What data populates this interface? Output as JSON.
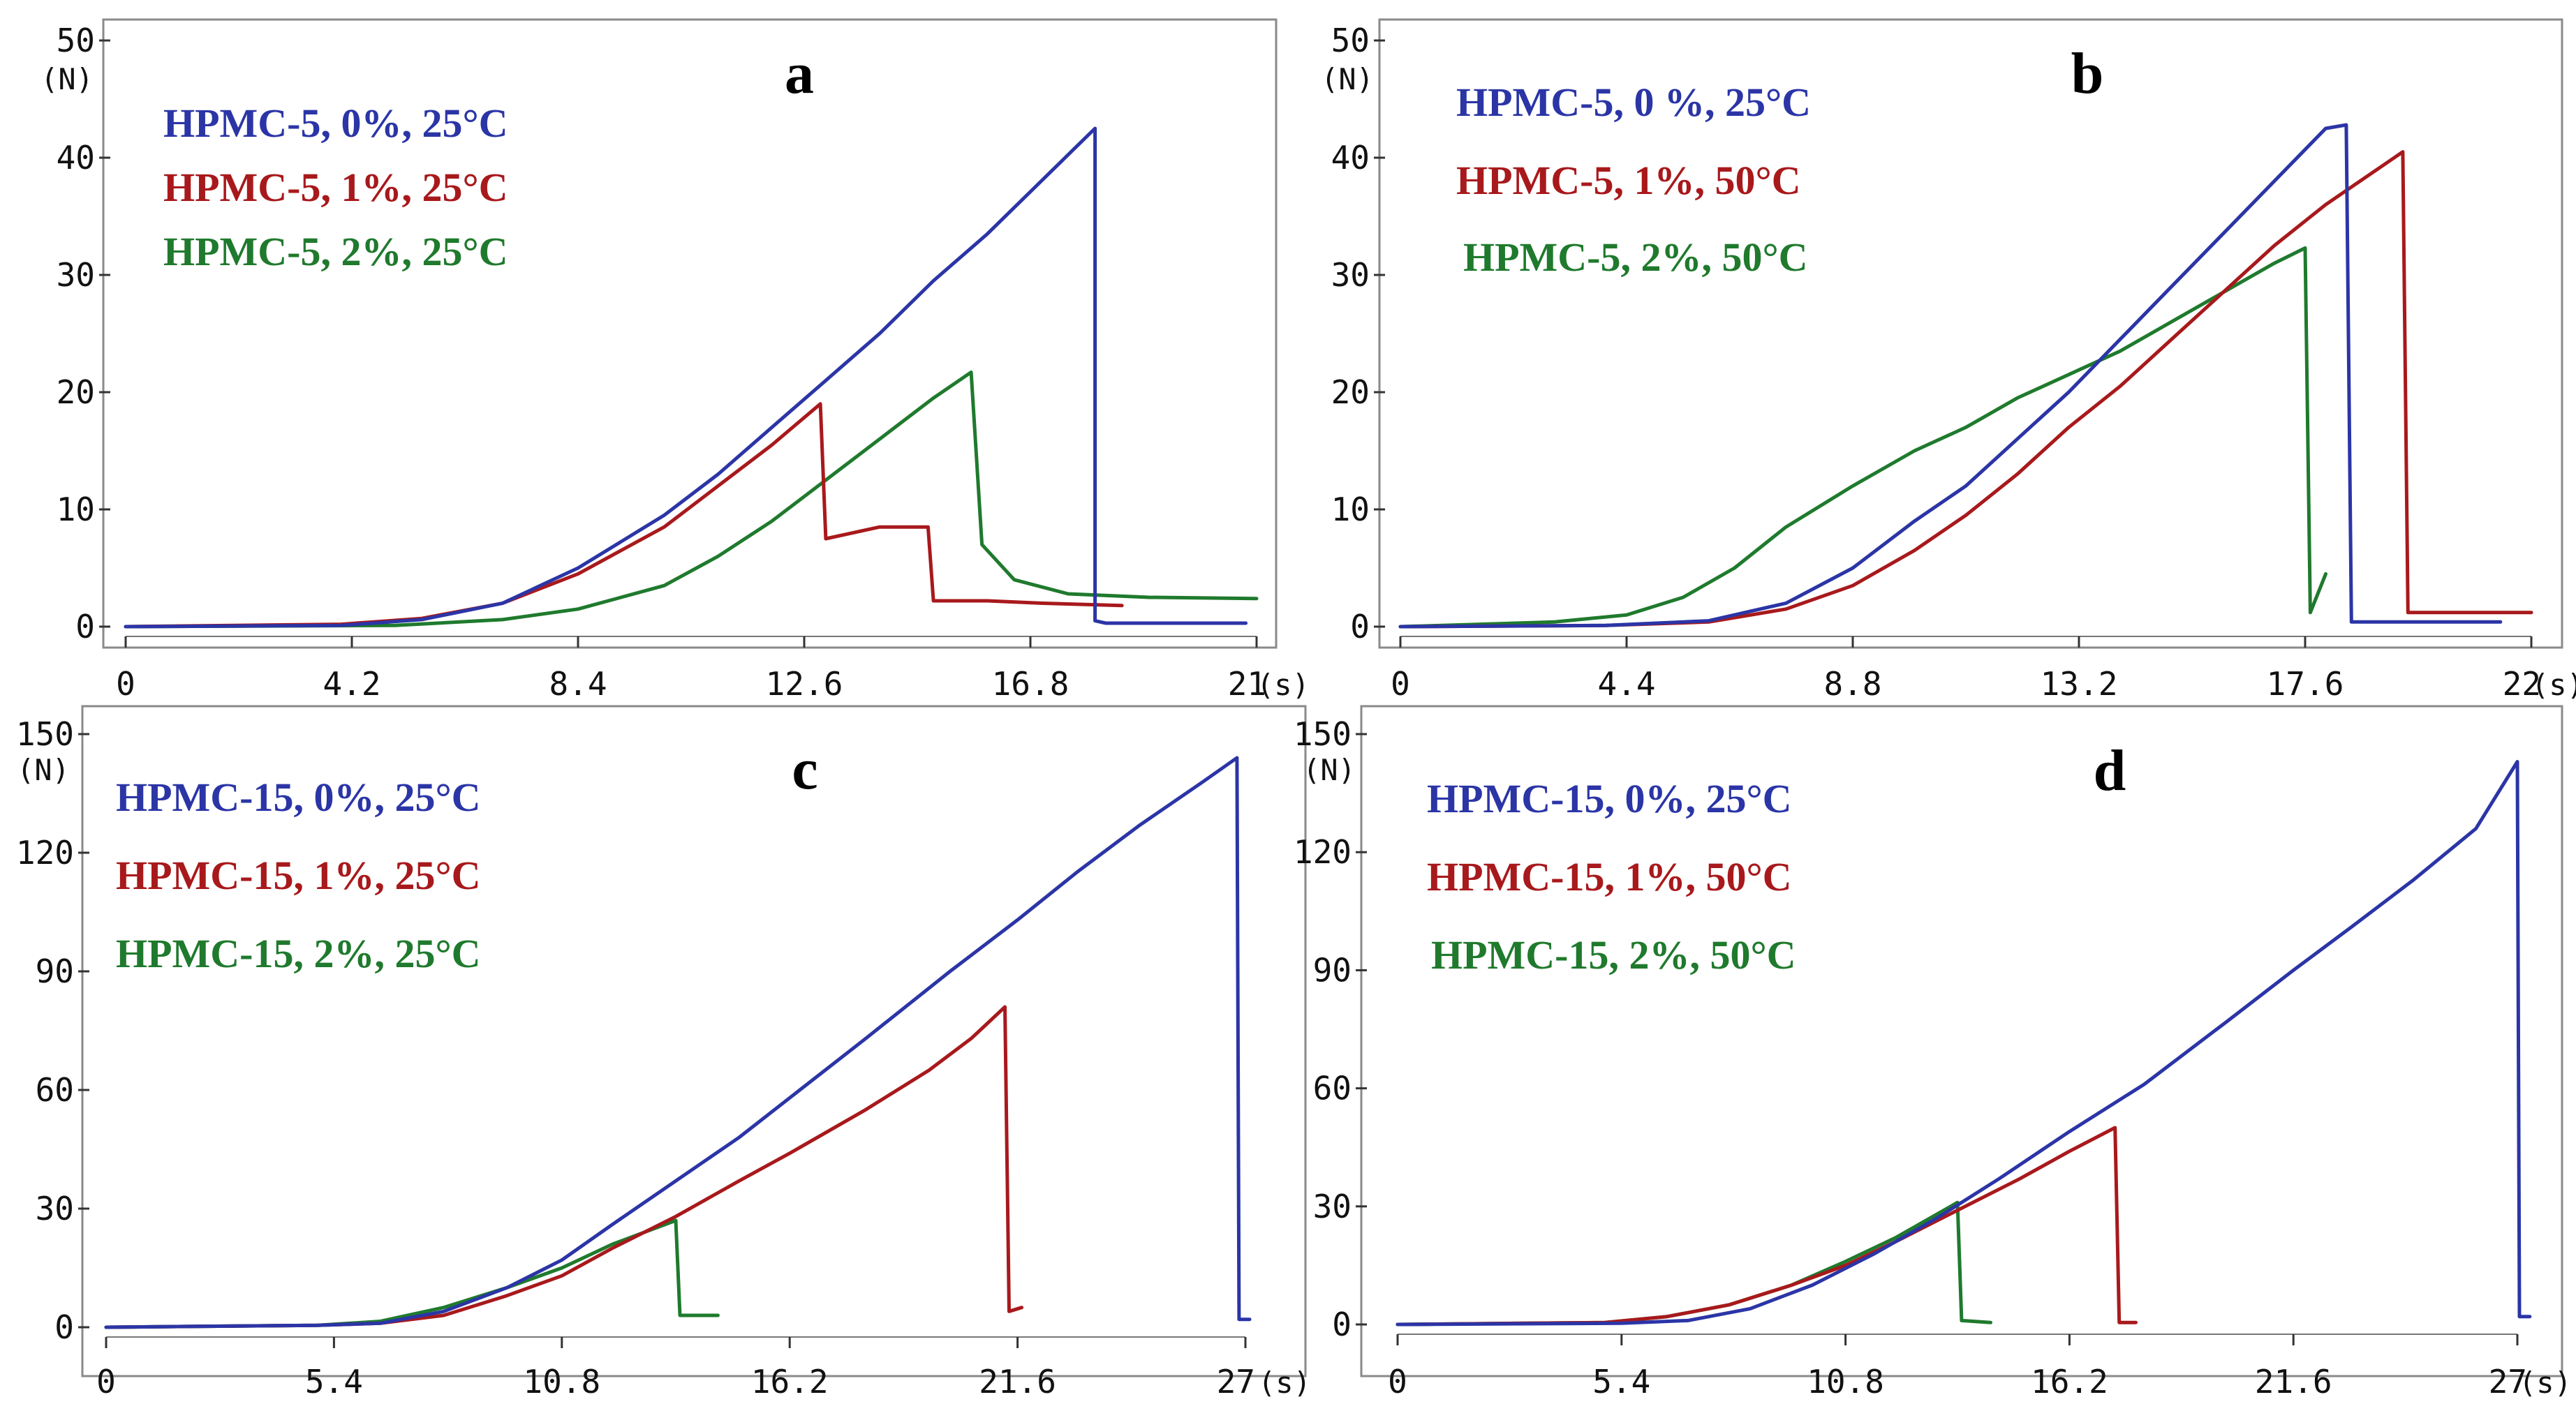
{
  "colors": {
    "blue": "#2b35a6",
    "red": "#a8191c",
    "green": "#1f7a2d",
    "frame": "#8a8a8a"
  },
  "chart_data": [
    {
      "type": "line",
      "panel": "a",
      "xlabel": "(s)",
      "ylabel": "(N)",
      "xlim": [
        0,
        21
      ],
      "ylim": [
        0,
        50
      ],
      "xticks": [
        "0",
        "4.2",
        "8.4",
        "12.6",
        "16.8",
        "21"
      ],
      "xtick_values": [
        0,
        4.2,
        8.4,
        12.6,
        16.8,
        21
      ],
      "yticks": [
        "0",
        "10",
        "20",
        "30",
        "40",
        "50"
      ],
      "ytick_values": [
        0,
        10,
        20,
        30,
        40,
        50
      ],
      "legend": [
        "HPMC-5, 0%, 25°C",
        "HPMC-5, 1%, 25°C",
        "HPMC-5, 2%, 25°C"
      ],
      "series": [
        {
          "name": "HPMC-5, 0%, 25°C",
          "color": "blue",
          "x": [
            0,
            4,
            5.5,
            7,
            8.4,
            10,
            11,
            12,
            13,
            14,
            15,
            16,
            17,
            18,
            18.0,
            18.2,
            20.8
          ],
          "y": [
            0,
            0.1,
            0.6,
            2,
            5,
            9.5,
            13,
            17,
            21,
            25,
            29.5,
            33.5,
            38,
            42.5,
            0.5,
            0.3,
            0.3
          ]
        },
        {
          "name": "HPMC-5, 1%, 25°C",
          "color": "red",
          "x": [
            0,
            4,
            5.5,
            7,
            8.4,
            10,
            11,
            12,
            12.9,
            13.0,
            14,
            14.9,
            15.0,
            16,
            17,
            18.5
          ],
          "y": [
            0,
            0.2,
            0.7,
            2,
            4.5,
            8.5,
            12,
            15.5,
            19,
            7.5,
            8.5,
            8.5,
            2.2,
            2.2,
            2.0,
            1.8
          ]
        },
        {
          "name": "HPMC-5, 2%, 25°C",
          "color": "green",
          "x": [
            0,
            5,
            7,
            8.4,
            10,
            11,
            12,
            13,
            14,
            15,
            15.7,
            15.9,
            16.5,
            17.5,
            19,
            21
          ],
          "y": [
            0,
            0.1,
            0.6,
            1.5,
            3.5,
            6,
            9,
            12.5,
            16,
            19.5,
            21.7,
            7,
            4,
            2.8,
            2.5,
            2.4
          ]
        }
      ]
    },
    {
      "type": "line",
      "panel": "b",
      "xlabel": "(s)",
      "ylabel": "(N)",
      "xlim": [
        0,
        22
      ],
      "ylim": [
        0,
        50
      ],
      "xticks": [
        "0",
        "4.4",
        "8.8",
        "13.2",
        "17.6",
        "22"
      ],
      "xtick_values": [
        0,
        4.4,
        8.8,
        13.2,
        17.6,
        22
      ],
      "yticks": [
        "0",
        "10",
        "20",
        "30",
        "40",
        "50"
      ],
      "ytick_values": [
        0,
        10,
        20,
        30,
        40,
        50
      ],
      "legend": [
        "HPMC-5, 0 %, 25°C",
        "HPMC-5, 1%, 50°C",
        "HPMC-5, 2%, 50°C"
      ],
      "series": [
        {
          "name": "HPMC-5, 0 %, 25°C",
          "color": "blue",
          "x": [
            0,
            4,
            6,
            7.5,
            8.8,
            10,
            11,
            12,
            13,
            14,
            15,
            16,
            17,
            18,
            18.4,
            18.5,
            21.4
          ],
          "y": [
            0,
            0.1,
            0.5,
            2,
            5,
            9,
            12,
            16,
            20,
            24.5,
            29,
            33.5,
            38,
            42.5,
            42.8,
            0.4,
            0.4
          ]
        },
        {
          "name": "HPMC-5, 1%, 50°C",
          "color": "red",
          "x": [
            0,
            4,
            6,
            7.5,
            8.8,
            10,
            11,
            12,
            13,
            14,
            15,
            16,
            17,
            18,
            19,
            19.5,
            19.6,
            22
          ],
          "y": [
            0,
            0.1,
            0.4,
            1.5,
            3.5,
            6.5,
            9.5,
            13,
            17,
            20.5,
            24.5,
            28.5,
            32.5,
            36,
            39,
            40.5,
            1.2,
            1.2
          ]
        },
        {
          "name": "HPMC-5, 2%, 50°C",
          "color": "green",
          "x": [
            0,
            3,
            4.4,
            5.5,
            6.5,
            7.5,
            8.8,
            10,
            11,
            12,
            13,
            14,
            15,
            16,
            17,
            17.6,
            17.7,
            18.0
          ],
          "y": [
            0,
            0.4,
            1,
            2.5,
            5,
            8.5,
            12,
            15,
            17,
            19.5,
            21.5,
            23.5,
            26,
            28.5,
            31,
            32.3,
            1.2,
            4.5
          ]
        }
      ]
    },
    {
      "type": "line",
      "panel": "c",
      "xlabel": "(s)",
      "ylabel": "(N)",
      "xlim": [
        0,
        27
      ],
      "ylim": [
        0,
        150
      ],
      "xticks": [
        "0",
        "5.4",
        "10.8",
        "16.2",
        "21.6",
        "27"
      ],
      "xtick_values": [
        0,
        5.4,
        10.8,
        16.2,
        21.6,
        27
      ],
      "yticks": [
        "0",
        "30",
        "60",
        "90",
        "120",
        "150"
      ],
      "ytick_values": [
        0,
        30,
        60,
        90,
        120,
        150
      ],
      "legend": [
        "HPMC-15, 0%, 25°C",
        "HPMC-15, 1%, 25°C",
        "HPMC-15, 2%, 25°C"
      ],
      "series": [
        {
          "name": "HPMC-15, 0%, 25°C",
          "color": "blue",
          "x": [
            0,
            5,
            6.5,
            8,
            9.5,
            10.8,
            12,
            13.5,
            15,
            16.2,
            18,
            20,
            21.6,
            23,
            24.5,
            26,
            26.8,
            26.85,
            27.1
          ],
          "y": [
            0,
            0.5,
            1,
            4,
            10,
            17,
            26,
            37,
            48,
            58,
            73,
            90,
            103,
            115,
            127,
            138,
            144,
            2,
            2
          ]
        },
        {
          "name": "HPMC-15, 1%, 25°C",
          "color": "red",
          "x": [
            0,
            5,
            6.5,
            8,
            9.5,
            10.8,
            12,
            13.5,
            15,
            16.2,
            18,
            19.5,
            20.5,
            21.3,
            21.4,
            21.7
          ],
          "y": [
            0,
            0.5,
            1,
            3,
            8,
            13,
            20,
            28,
            37,
            44,
            55,
            65,
            73,
            81,
            4,
            5
          ]
        },
        {
          "name": "HPMC-15, 2%, 25°C",
          "color": "green",
          "x": [
            0,
            5,
            6.5,
            8,
            9.5,
            10.8,
            12,
            13.5,
            13.6,
            13.8,
            14.5
          ],
          "y": [
            0,
            0.5,
            1.5,
            5,
            10,
            15,
            21,
            27,
            3,
            3,
            3
          ]
        }
      ]
    },
    {
      "type": "line",
      "panel": "d",
      "xlabel": "(s)",
      "ylabel": "(N)",
      "xlim": [
        0,
        27
      ],
      "ylim": [
        0,
        150
      ],
      "xticks": [
        "0",
        "5.4",
        "10.8",
        "16.2",
        "21.6",
        "27"
      ],
      "xtick_values": [
        0,
        5.4,
        10.8,
        16.2,
        21.6,
        27
      ],
      "yticks": [
        "0",
        "30",
        "60",
        "90",
        "120",
        "150"
      ],
      "ytick_values": [
        0,
        30,
        60,
        90,
        120,
        150
      ],
      "legend": [
        "HPMC-15, 0%, 25°C",
        "HPMC-15, 1%, 50°C",
        "HPMC-15, 2%, 50°C"
      ],
      "series": [
        {
          "name": "HPMC-15, 0%, 25°C",
          "color": "blue",
          "x": [
            0,
            5.4,
            7,
            8.5,
            10,
            11.5,
            13,
            14.5,
            16.2,
            18,
            20,
            21.6,
            23,
            24.5,
            26,
            27,
            27.05,
            27.3
          ],
          "y": [
            0,
            0.3,
            1,
            4,
            10,
            18,
            27,
            37,
            49,
            61,
            77,
            90,
            101,
            113,
            126,
            143,
            2,
            2
          ]
        },
        {
          "name": "HPMC-15, 1%, 50°C",
          "color": "red",
          "x": [
            0,
            5,
            6.5,
            8,
            9.5,
            10.8,
            12,
            13.5,
            15,
            16.2,
            17.3,
            17.4,
            17.8
          ],
          "y": [
            0,
            0.5,
            2,
            5,
            10,
            15,
            21,
            29,
            37,
            44,
            50,
            0.5,
            0.5
          ]
        },
        {
          "name": "HPMC-15, 2%, 50°C",
          "color": "green",
          "x": [
            0,
            5,
            6.5,
            8,
            9.5,
            10.8,
            12,
            13.5,
            13.6,
            14.3
          ],
          "y": [
            0,
            0.5,
            2,
            5,
            10,
            16,
            22,
            31,
            1,
            0.5
          ]
        }
      ]
    }
  ]
}
